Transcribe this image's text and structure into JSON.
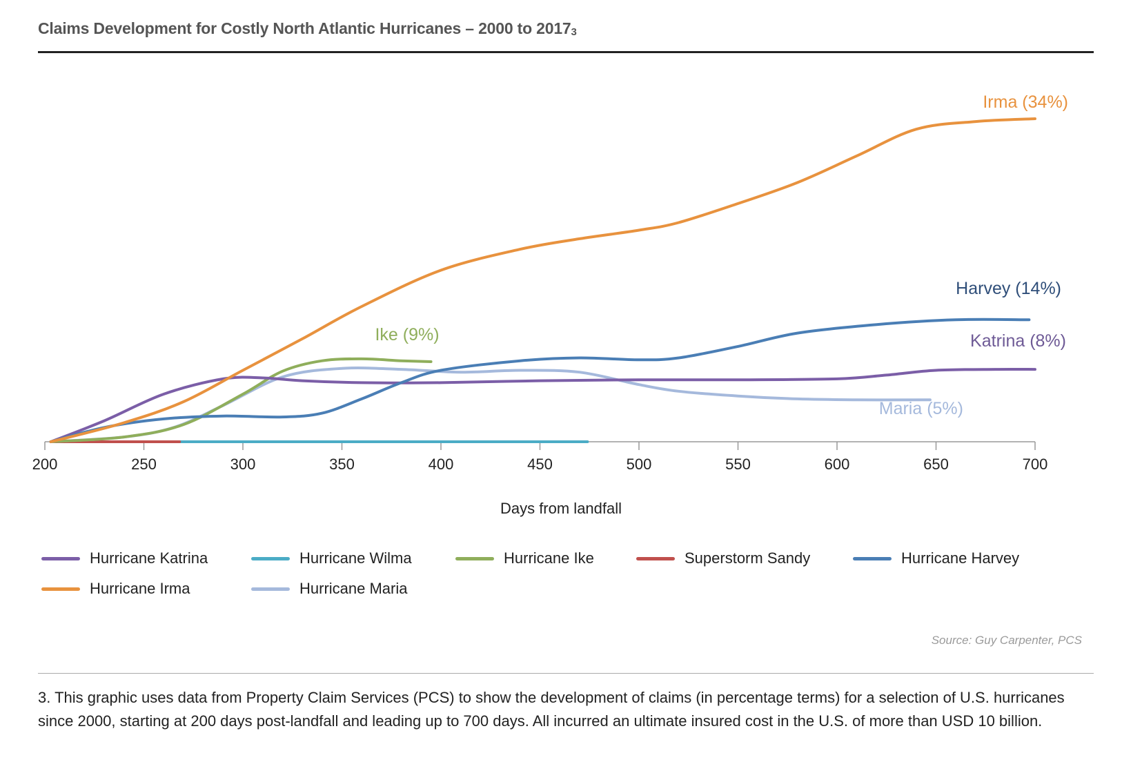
{
  "title": "Claims Development for Costly North Atlantic Hurricanes – 2000 to 2017",
  "title_note": "3",
  "source": "Source:  Guy Carpenter, PCS",
  "footnote": "3. This graphic uses data from Property Claim Services (PCS) to show the development of claims (in percentage terms) for a selection of U.S. hurricanes since 2000, starting at 200 days post-landfall and leading up to 700 days. All incurred an ultimate insured cost in the U.S. of more than USD 10 billion.",
  "chart_data": {
    "type": "line",
    "xlabel": "Days from landfall",
    "ylabel": "",
    "xlim": [
      200,
      700
    ],
    "ylim": [
      0,
      36
    ],
    "x_ticks": [
      200,
      250,
      300,
      350,
      400,
      450,
      500,
      550,
      600,
      650,
      700
    ],
    "grid": false,
    "legend_position": "bottom",
    "series": [
      {
        "name": "Hurricane Katrina",
        "color": "#7B5EA7",
        "label": "Katrina (8%)",
        "points": [
          [
            203,
            0
          ],
          [
            230,
            2.2
          ],
          [
            260,
            5
          ],
          [
            290,
            6.6
          ],
          [
            310,
            6.7
          ],
          [
            330,
            6.4
          ],
          [
            360,
            6.2
          ],
          [
            400,
            6.2
          ],
          [
            450,
            6.4
          ],
          [
            500,
            6.5
          ],
          [
            550,
            6.5
          ],
          [
            600,
            6.6
          ],
          [
            625,
            7.0
          ],
          [
            650,
            7.5
          ],
          [
            680,
            7.6
          ],
          [
            700,
            7.6
          ]
        ]
      },
      {
        "name": "Hurricane Wilma",
        "color": "#4BACC6",
        "label": "",
        "points": [
          [
            268,
            0
          ],
          [
            300,
            0
          ],
          [
            350,
            0
          ],
          [
            400,
            0
          ],
          [
            474,
            0
          ]
        ]
      },
      {
        "name": "Hurricane Ike",
        "color": "#8FAE5B",
        "label": "Ike (9%)",
        "points": [
          [
            203,
            0
          ],
          [
            240,
            0.5
          ],
          [
            270,
            1.8
          ],
          [
            300,
            5.0
          ],
          [
            320,
            7.4
          ],
          [
            340,
            8.5
          ],
          [
            360,
            8.7
          ],
          [
            380,
            8.5
          ],
          [
            395,
            8.4
          ]
        ]
      },
      {
        "name": "Superstorm Sandy",
        "color": "#C0504D",
        "label": "",
        "points": [
          [
            203,
            0
          ],
          [
            230,
            0
          ],
          [
            268,
            0
          ]
        ]
      },
      {
        "name": "Hurricane Harvey",
        "color": "#4A7EB5",
        "label": "Harvey (14%)",
        "points": [
          [
            203,
            0
          ],
          [
            230,
            1.5
          ],
          [
            260,
            2.4
          ],
          [
            290,
            2.7
          ],
          [
            320,
            2.6
          ],
          [
            340,
            3.0
          ],
          [
            360,
            4.5
          ],
          [
            380,
            6.2
          ],
          [
            400,
            7.5
          ],
          [
            440,
            8.5
          ],
          [
            470,
            8.8
          ],
          [
            500,
            8.6
          ],
          [
            520,
            8.8
          ],
          [
            550,
            10.0
          ],
          [
            580,
            11.4
          ],
          [
            620,
            12.3
          ],
          [
            660,
            12.8
          ],
          [
            697,
            12.8
          ]
        ]
      },
      {
        "name": "Hurricane Irma",
        "color": "#E8923E",
        "label": "Irma (34%)",
        "points": [
          [
            203,
            0
          ],
          [
            240,
            2.0
          ],
          [
            270,
            4.2
          ],
          [
            300,
            7.5
          ],
          [
            330,
            10.8
          ],
          [
            360,
            14.2
          ],
          [
            400,
            18.0
          ],
          [
            440,
            20.2
          ],
          [
            470,
            21.3
          ],
          [
            500,
            22.2
          ],
          [
            520,
            23.0
          ],
          [
            550,
            25.0
          ],
          [
            580,
            27.2
          ],
          [
            610,
            30.0
          ],
          [
            640,
            32.8
          ],
          [
            670,
            33.6
          ],
          [
            700,
            33.9
          ]
        ]
      },
      {
        "name": "Hurricane Maria",
        "color": "#A5B9DC",
        "label": "Maria (5%)",
        "points": [
          [
            203,
            0
          ],
          [
            240,
            0.5
          ],
          [
            265,
            1.5
          ],
          [
            290,
            3.8
          ],
          [
            320,
            6.8
          ],
          [
            350,
            7.7
          ],
          [
            380,
            7.6
          ],
          [
            410,
            7.3
          ],
          [
            440,
            7.5
          ],
          [
            470,
            7.3
          ],
          [
            500,
            6.0
          ],
          [
            520,
            5.3
          ],
          [
            550,
            4.8
          ],
          [
            580,
            4.5
          ],
          [
            610,
            4.4
          ],
          [
            647,
            4.4
          ]
        ]
      }
    ]
  }
}
